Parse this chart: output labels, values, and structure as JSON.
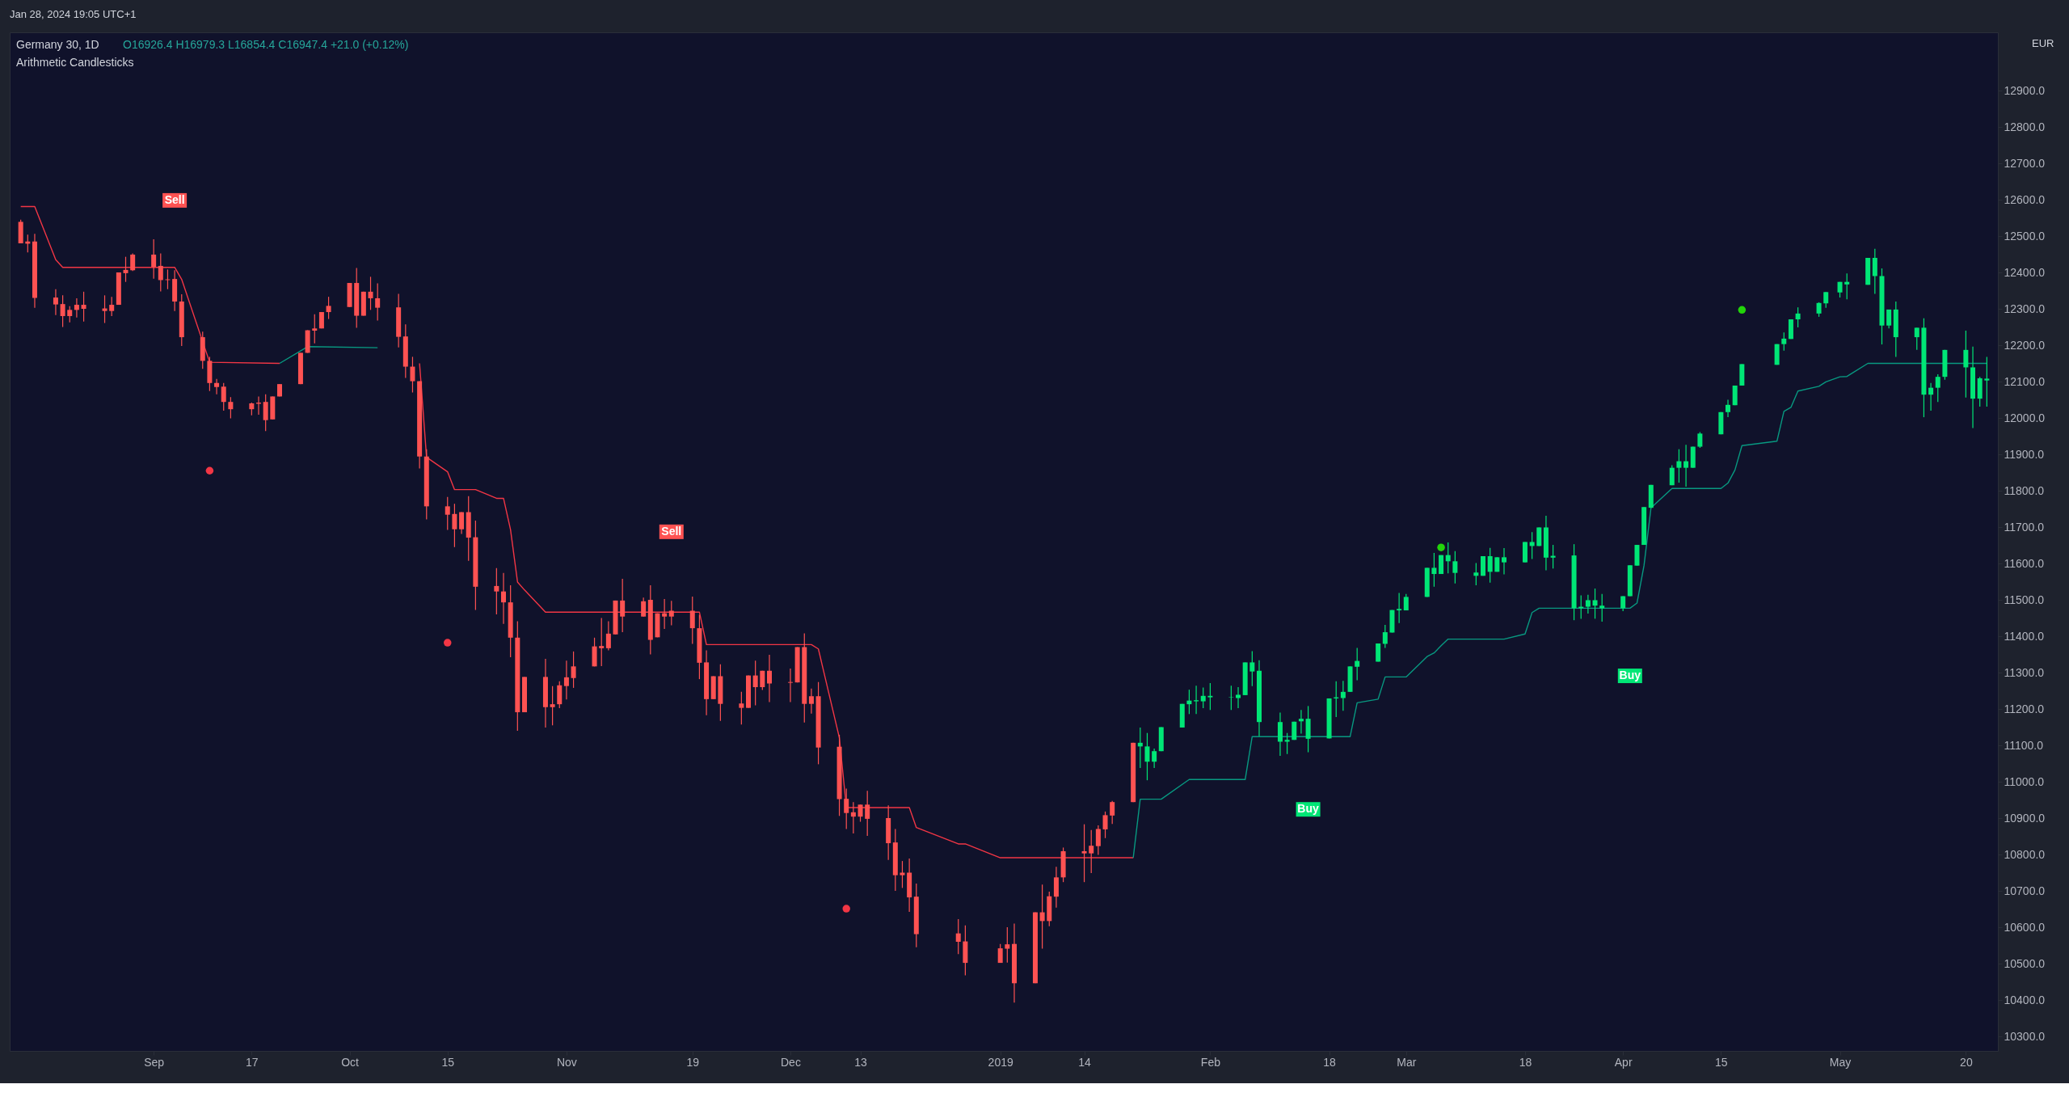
{
  "chart_data": {
    "type": "candlestick",
    "title": "Germany 30, 1D",
    "subtitle": "Arithmetic Candlesticks",
    "annotations": [
      "Jan 28, 2024 19:05 UTC+1",
      "O16926.4 H16979.3 L16854.4 C16947.4 +21.0 (+0.12%)",
      "EUR",
      {
        "text": "Sell",
        "x": "2018-09-06",
        "y": 12598
      },
      {
        "text": "Sell",
        "x": "2018-11-16",
        "y": 11687
      },
      {
        "text": "Buy",
        "x": "2019-02-15",
        "y": 10924
      },
      {
        "text": "Buy",
        "x": "2019-04-02",
        "y": 11291
      }
    ],
    "xlim": [
      "2018-08-14",
      "2019-05-24"
    ],
    "xticks": [
      {
        "value": "2018-09-03",
        "label": "Sep"
      },
      {
        "value": "2018-09-17",
        "label": "17"
      },
      {
        "value": "2018-10-01",
        "label": "Oct"
      },
      {
        "value": "2018-10-15",
        "label": "15"
      },
      {
        "value": "2018-11-01",
        "label": "Nov"
      },
      {
        "value": "2018-11-19",
        "label": "19"
      },
      {
        "value": "2018-12-03",
        "label": "Dec"
      },
      {
        "value": "2018-12-13",
        "label": "13"
      },
      {
        "value": "2019-01-02",
        "label": "2019"
      },
      {
        "value": "2019-01-14",
        "label": "14"
      },
      {
        "value": "2019-02-01",
        "label": "Feb"
      },
      {
        "value": "2019-02-18",
        "label": "18"
      },
      {
        "value": "2019-03-01",
        "label": "Mar"
      },
      {
        "value": "2019-03-18",
        "label": "18"
      },
      {
        "value": "2019-04-01",
        "label": "Apr"
      },
      {
        "value": "2019-04-15",
        "label": "15"
      },
      {
        "value": "2019-05-02",
        "label": "May"
      },
      {
        "value": "2019-05-20",
        "label": "20"
      }
    ],
    "ylim": [
      10260,
      13060
    ],
    "yticks": [
      {
        "value": 10300,
        "label": "10300.0"
      },
      {
        "value": 10400,
        "label": "10400.0"
      },
      {
        "value": 10500,
        "label": "10500.0"
      },
      {
        "value": 10600,
        "label": "10600.0"
      },
      {
        "value": 10700,
        "label": "10700.0"
      },
      {
        "value": 10800,
        "label": "10800.0"
      },
      {
        "value": 10900,
        "label": "10900.0"
      },
      {
        "value": 11000,
        "label": "11000.0"
      },
      {
        "value": 11100,
        "label": "11100.0"
      },
      {
        "value": 11200,
        "label": "11200.0"
      },
      {
        "value": 11300,
        "label": "11300.0"
      },
      {
        "value": 11400,
        "label": "11400.0"
      },
      {
        "value": 11500,
        "label": "11500.0"
      },
      {
        "value": 11600,
        "label": "11600.0"
      },
      {
        "value": 11700,
        "label": "11700.0"
      },
      {
        "value": 11800,
        "label": "11800.0"
      },
      {
        "value": 11900,
        "label": "11900.0"
      },
      {
        "value": 12000,
        "label": "12000.0"
      },
      {
        "value": 12100,
        "label": "12100.0"
      },
      {
        "value": 12200,
        "label": "12200.0"
      },
      {
        "value": 12300,
        "label": "12300.0"
      },
      {
        "value": 12400,
        "label": "12400.0"
      },
      {
        "value": 12500,
        "label": "12500.0"
      },
      {
        "value": 12600,
        "label": "12600.0"
      },
      {
        "value": 12700,
        "label": "12700.0"
      },
      {
        "value": 12800,
        "label": "12800.0"
      },
      {
        "value": 12900,
        "label": "12900.0"
      }
    ],
    "series": [
      {
        "type": "line",
        "color": "#f23645",
        "x": [
          "2018-08-15",
          "2018-08-17",
          "2018-08-20",
          "2018-08-21",
          "2018-09-06",
          "2018-09-07",
          "2018-09-11",
          "2018-09-21"
        ],
        "values": [
          12581,
          12581,
          12435,
          12414,
          12414,
          12381,
          12153,
          12150
        ]
      },
      {
        "type": "line",
        "color": "#089981",
        "x": [
          "2018-09-21",
          "2018-09-25",
          "2018-10-05"
        ],
        "values": [
          12150,
          12196,
          12193
        ]
      },
      {
        "type": "line",
        "color": "#f23645",
        "x": [
          "2018-10-11",
          "2018-10-12",
          "2018-10-15",
          "2018-10-16",
          "2018-10-19",
          "2018-10-22",
          "2018-10-23",
          "2018-10-24",
          "2018-10-25",
          "2018-10-26",
          "2018-10-29",
          "2018-11-20",
          "2018-11-21",
          "2018-12-06",
          "2018-12-07",
          "2018-12-10",
          "2018-12-11",
          "2018-12-20",
          "2018-12-21",
          "2018-12-27",
          "2018-12-28",
          "2019-01-02",
          "2019-01-21"
        ],
        "values": [
          12150,
          11892,
          11852,
          11803,
          11803,
          11779,
          11779,
          11693,
          11549,
          11527,
          11466,
          11466,
          11377,
          11377,
          11365,
          11121,
          10929,
          10929,
          10874,
          10829,
          10829,
          10791,
          10791
        ]
      },
      {
        "type": "line",
        "color": "#089981",
        "x": [
          "2019-01-21",
          "2019-01-22",
          "2019-01-25",
          "2019-01-29",
          "2019-02-06",
          "2019-02-07",
          "2019-02-21",
          "2019-02-22",
          "2019-02-25",
          "2019-02-26",
          "2019-03-01",
          "2019-03-04",
          "2019-03-05",
          "2019-03-06",
          "2019-03-07",
          "2019-03-15",
          "2019-03-18",
          "2019-03-19",
          "2019-03-20",
          "2019-04-02",
          "2019-04-03",
          "2019-04-04",
          "2019-04-05",
          "2019-04-08",
          "2019-04-15",
          "2019-04-16",
          "2019-04-17",
          "2019-04-18",
          "2019-04-23",
          "2019-04-24",
          "2019-04-25",
          "2019-04-26",
          "2019-04-29",
          "2019-04-30",
          "2019-05-02",
          "2019-05-03",
          "2019-05-06",
          "2019-05-23"
        ],
        "values": [
          10791,
          10952,
          10952,
          11006,
          11006,
          11124,
          11124,
          11217,
          11227,
          11288,
          11288,
          11344,
          11354,
          11374,
          11392,
          11392,
          11406,
          11465,
          11477,
          11477,
          11491,
          11594,
          11753,
          11806,
          11806,
          11821,
          11857,
          11924,
          11936,
          12018,
          12029,
          12074,
          12087,
          12099,
          12113,
          12114,
          12150,
          12150
        ]
      },
      {
        "type": "scatter",
        "marker": "circle",
        "color": "#f23645",
        "x": [
          "2018-09-11",
          "2018-10-15",
          "2018-12-11"
        ],
        "values": [
          11855,
          11382,
          10651
        ]
      },
      {
        "type": "scatter",
        "marker": "circle",
        "color": "#22d40a",
        "x": [
          "2019-03-06",
          "2019-04-18"
        ],
        "values": [
          11644,
          12297
        ]
      },
      {
        "type": "candlestick",
        "color": "#ff5252",
        "x": [
          "2018-08-15",
          "2018-08-16",
          "2018-08-17",
          "2018-08-20",
          "2018-08-21",
          "2018-08-22",
          "2018-08-23",
          "2018-08-24",
          "2018-08-27",
          "2018-08-28",
          "2018-08-29",
          "2018-08-30",
          "2018-08-31",
          "2018-09-03",
          "2018-09-04",
          "2018-09-05",
          "2018-09-06",
          "2018-09-07",
          "2018-09-10",
          "2018-09-11",
          "2018-09-12",
          "2018-09-13",
          "2018-09-14",
          "2018-09-17",
          "2018-09-18",
          "2018-09-19",
          "2018-09-20",
          "2018-09-21",
          "2018-09-24",
          "2018-09-25",
          "2018-09-26",
          "2018-09-27",
          "2018-09-28",
          "2018-10-01",
          "2018-10-02",
          "2018-10-03",
          "2018-10-04",
          "2018-10-05",
          "2018-10-08",
          "2018-10-09",
          "2018-10-10",
          "2018-10-11",
          "2018-10-12",
          "2018-10-15",
          "2018-10-16",
          "2018-10-17",
          "2018-10-18",
          "2018-10-19",
          "2018-10-22",
          "2018-10-23",
          "2018-10-24",
          "2018-10-25",
          "2018-10-26",
          "2018-10-29",
          "2018-10-30",
          "2018-10-31",
          "2018-11-01",
          "2018-11-02",
          "2018-11-05",
          "2018-11-06",
          "2018-11-07",
          "2018-11-08",
          "2018-11-09",
          "2018-11-12",
          "2018-11-13",
          "2018-11-14",
          "2018-11-15",
          "2018-11-16",
          "2018-11-19",
          "2018-11-20",
          "2018-11-21",
          "2018-11-22",
          "2018-11-23",
          "2018-11-26",
          "2018-11-27",
          "2018-11-28",
          "2018-11-29",
          "2018-11-30",
          "2018-12-03",
          "2018-12-04",
          "2018-12-05",
          "2018-12-06",
          "2018-12-07",
          "2018-12-10",
          "2018-12-11",
          "2018-12-12",
          "2018-12-13",
          "2018-12-14",
          "2018-12-17",
          "2018-12-18",
          "2018-12-19",
          "2018-12-20",
          "2018-12-21",
          "2018-12-27",
          "2018-12-28",
          "2019-01-02",
          "2019-01-03",
          "2019-01-04",
          "2019-01-07",
          "2019-01-08",
          "2019-01-09",
          "2019-01-10",
          "2019-01-11",
          "2019-01-14",
          "2019-01-15",
          "2019-01-16",
          "2019-01-17",
          "2019-01-18",
          "2019-01-21"
        ],
        "ohlc": [
          [
            12539,
            12545,
            12480,
            12480
          ],
          [
            12485,
            12504,
            12455,
            12479
          ],
          [
            12485,
            12506,
            12303,
            12330
          ],
          [
            12331,
            12354,
            12283,
            12312
          ],
          [
            12313,
            12337,
            12250,
            12280
          ],
          [
            12297,
            12307,
            12263,
            12280
          ],
          [
            12311,
            12329,
            12276,
            12297
          ],
          [
            12311,
            12347,
            12265,
            12300
          ],
          [
            12301,
            12337,
            12261,
            12294
          ],
          [
            12311,
            12333,
            12280,
            12294
          ],
          [
            12400,
            12400,
            12311,
            12311
          ],
          [
            12407,
            12443,
            12374,
            12398
          ],
          [
            12449,
            12452,
            12404,
            12406
          ],
          [
            12449,
            12491,
            12383,
            12415
          ],
          [
            12418,
            12452,
            12348,
            12379
          ],
          [
            12381,
            12408,
            12354,
            12379
          ],
          [
            12382,
            12406,
            12294,
            12320
          ],
          [
            12320,
            12340,
            12198,
            12222
          ],
          [
            12222,
            12237,
            12135,
            12157
          ],
          [
            12157,
            12168,
            12074,
            12096
          ],
          [
            12096,
            12107,
            12065,
            12085
          ],
          [
            12086,
            12096,
            12020,
            12044
          ],
          [
            12044,
            12057,
            11999,
            12024
          ],
          [
            12040,
            12042,
            12007,
            12024
          ],
          [
            12042,
            12059,
            12009,
            12039
          ],
          [
            12044,
            12065,
            11964,
            11994
          ],
          [
            12059,
            12059,
            11996,
            11996
          ],
          [
            12093,
            12093,
            12059,
            12059
          ],
          [
            12179,
            12179,
            12093,
            12093
          ],
          [
            12241,
            12241,
            12179,
            12179
          ],
          [
            12246,
            12285,
            12205,
            12240
          ],
          [
            12291,
            12291,
            12246,
            12246
          ],
          [
            12308,
            12333,
            12272,
            12291
          ],
          [
            12371,
            12371,
            12305,
            12305
          ],
          [
            12371,
            12412,
            12248,
            12281
          ],
          [
            12347,
            12347,
            12281,
            12281
          ],
          [
            12347,
            12388,
            12297,
            12329
          ],
          [
            12329,
            12370,
            12268,
            12303
          ],
          [
            12304,
            12341,
            12194,
            12223
          ],
          [
            12224,
            12257,
            12110,
            12141
          ],
          [
            12141,
            12168,
            12070,
            12101
          ],
          [
            12101,
            12101,
            11861,
            11894
          ],
          [
            11894,
            11914,
            11721,
            11757
          ],
          [
            11757,
            11783,
            11692,
            11734
          ],
          [
            11736,
            11764,
            11645,
            11694
          ],
          [
            11741,
            11741,
            11681,
            11694
          ],
          [
            11741,
            11785,
            11607,
            11671
          ],
          [
            11672,
            11718,
            11472,
            11536
          ],
          [
            11538,
            11587,
            11460,
            11523
          ],
          [
            11523,
            11574,
            11434,
            11493
          ],
          [
            11493,
            11540,
            11342,
            11396
          ],
          [
            11396,
            11441,
            11140,
            11191
          ],
          [
            11288,
            11288,
            11191,
            11191
          ],
          [
            11288,
            11338,
            11149,
            11205
          ],
          [
            11213,
            11263,
            11155,
            11205
          ],
          [
            11265,
            11276,
            11202,
            11213
          ],
          [
            11287,
            11333,
            11226,
            11263
          ],
          [
            11317,
            11358,
            11258,
            11285
          ],
          [
            11372,
            11396,
            11317,
            11317
          ],
          [
            11373,
            11450,
            11318,
            11367
          ],
          [
            11407,
            11441,
            11361,
            11367
          ],
          [
            11498,
            11498,
            11405,
            11405
          ],
          [
            11498,
            11558,
            11411,
            11454
          ],
          [
            11496,
            11506,
            11454,
            11454
          ],
          [
            11500,
            11540,
            11350,
            11390
          ],
          [
            11463,
            11463,
            11397,
            11397
          ],
          [
            11463,
            11502,
            11420,
            11454
          ],
          [
            11470,
            11497,
            11430,
            11454
          ],
          [
            11470,
            11509,
            11379,
            11422
          ],
          [
            11422,
            11459,
            11282,
            11327
          ],
          [
            11328,
            11361,
            11183,
            11227
          ],
          [
            11290,
            11290,
            11227,
            11227
          ],
          [
            11290,
            11323,
            11167,
            11214
          ],
          [
            11215,
            11247,
            11157,
            11203
          ],
          [
            11292,
            11292,
            11203,
            11203
          ],
          [
            11292,
            11333,
            11210,
            11260
          ],
          [
            11305,
            11305,
            11252,
            11260
          ],
          [
            11305,
            11349,
            11219,
            11270
          ],
          [
            11274,
            11311,
            11219,
            11272
          ],
          [
            11370,
            11370,
            11273,
            11273
          ],
          [
            11370,
            11408,
            11163,
            11214
          ],
          [
            11235,
            11256,
            11187,
            11214
          ],
          [
            11235,
            11274,
            11048,
            11094
          ],
          [
            11096,
            11129,
            10906,
            10952
          ],
          [
            10953,
            10981,
            10870,
            10914
          ],
          [
            10916,
            10944,
            10858,
            10904
          ],
          [
            10937,
            10937,
            10890,
            10904
          ],
          [
            10937,
            10975,
            10851,
            10898
          ],
          [
            10900,
            10935,
            10785,
            10831
          ],
          [
            10833,
            10870,
            10700,
            10743
          ],
          [
            10750,
            10782,
            10708,
            10743
          ],
          [
            10750,
            10789,
            10642,
            10682
          ],
          [
            10684,
            10720,
            10545,
            10581
          ],
          [
            10583,
            10622,
            10526,
            10560
          ],
          [
            10561,
            10605,
            10468,
            10502
          ],
          [
            10542,
            10554,
            10502,
            10502
          ],
          [
            10553,
            10600,
            10503,
            10541
          ],
          [
            10554,
            10610,
            10393,
            10446
          ],
          [
            10641,
            10641,
            10446,
            10446
          ],
          [
            10641,
            10717,
            10541,
            10617
          ],
          [
            10685,
            10698,
            10603,
            10617
          ],
          [
            10737,
            10766,
            10654,
            10684
          ],
          [
            10809,
            10819,
            10724,
            10737
          ],
          [
            10809,
            10883,
            10724,
            10803
          ],
          [
            10824,
            10867,
            10749,
            10803
          ],
          [
            10870,
            10880,
            10799,
            10823
          ],
          [
            10908,
            10918,
            10845,
            10869
          ],
          [
            10944,
            10947,
            10884,
            10907
          ],
          [
            11107,
            11107,
            10944,
            10944
          ]
        ]
      },
      {
        "type": "candlestick",
        "color": "#00e676",
        "x": [
          "2019-01-22",
          "2019-01-23",
          "2019-01-24",
          "2019-01-25",
          "2019-01-28",
          "2019-01-29",
          "2019-01-30",
          "2019-01-31",
          "2019-02-01",
          "2019-02-04",
          "2019-02-05",
          "2019-02-06",
          "2019-02-07",
          "2019-02-08",
          "2019-02-11",
          "2019-02-12",
          "2019-02-13",
          "2019-02-14",
          "2019-02-15",
          "2019-02-18",
          "2019-02-19",
          "2019-02-20",
          "2019-02-21",
          "2019-02-22",
          "2019-02-25",
          "2019-02-26",
          "2019-02-27",
          "2019-02-28",
          "2019-03-01",
          "2019-03-04",
          "2019-03-05",
          "2019-03-06",
          "2019-03-07",
          "2019-03-08",
          "2019-03-11",
          "2019-03-12",
          "2019-03-13",
          "2019-03-14",
          "2019-03-15",
          "2019-03-18",
          "2019-03-19",
          "2019-03-20",
          "2019-03-21",
          "2019-03-22",
          "2019-03-25",
          "2019-03-26",
          "2019-03-27",
          "2019-03-28",
          "2019-03-29",
          "2019-04-01",
          "2019-04-02",
          "2019-04-03",
          "2019-04-04",
          "2019-04-05",
          "2019-04-08",
          "2019-04-09",
          "2019-04-10",
          "2019-04-11",
          "2019-04-12",
          "2019-04-15",
          "2019-04-16",
          "2019-04-17",
          "2019-04-18",
          "2019-04-23",
          "2019-04-24",
          "2019-04-25",
          "2019-04-26",
          "2019-04-29",
          "2019-04-30",
          "2019-05-02",
          "2019-05-03",
          "2019-05-06",
          "2019-05-07",
          "2019-05-08",
          "2019-05-09",
          "2019-05-10",
          "2019-05-13",
          "2019-05-14",
          "2019-05-15",
          "2019-05-16",
          "2019-05-17",
          "2019-05-20",
          "2019-05-21",
          "2019-05-22",
          "2019-05-23"
        ],
        "ohlc": [
          [
            11097,
            11149,
            11038,
            11107
          ],
          [
            11055,
            11134,
            11004,
            11097
          ],
          [
            11055,
            11091,
            11038,
            11084
          ],
          [
            11084,
            11150,
            11084,
            11150
          ],
          [
            11149,
            11214,
            11149,
            11214
          ],
          [
            11213,
            11253,
            11186,
            11223
          ],
          [
            11221,
            11264,
            11186,
            11224
          ],
          [
            11221,
            11259,
            11202,
            11236
          ],
          [
            11232,
            11271,
            11197,
            11236
          ],
          [
            11232,
            11264,
            11197,
            11233
          ],
          [
            11230,
            11260,
            11202,
            11239
          ],
          [
            11238,
            11328,
            11238,
            11328
          ],
          [
            11303,
            11359,
            11263,
            11328
          ],
          [
            11164,
            11334,
            11125,
            11305
          ],
          [
            11110,
            11190,
            11071,
            11164
          ],
          [
            11110,
            11134,
            11076,
            11115
          ],
          [
            11115,
            11165,
            11115,
            11165
          ],
          [
            11166,
            11197,
            11132,
            11173
          ],
          [
            11118,
            11208,
            11081,
            11173
          ],
          [
            11119,
            11229,
            11119,
            11229
          ],
          [
            11229,
            11276,
            11178,
            11232
          ],
          [
            11230,
            11277,
            11195,
            11247
          ],
          [
            11247,
            11317,
            11247,
            11317
          ],
          [
            11316,
            11368,
            11279,
            11332
          ],
          [
            11330,
            11380,
            11330,
            11380
          ],
          [
            11379,
            11431,
            11368,
            11411
          ],
          [
            11410,
            11472,
            11410,
            11472
          ],
          [
            11471,
            11519,
            11436,
            11475
          ],
          [
            11471,
            11516,
            11471,
            11508
          ],
          [
            11508,
            11588,
            11508,
            11588
          ],
          [
            11571,
            11629,
            11536,
            11588
          ],
          [
            11571,
            11623,
            11571,
            11623
          ],
          [
            11606,
            11658,
            11573,
            11623
          ],
          [
            11574,
            11634,
            11545,
            11606
          ],
          [
            11566,
            11601,
            11540,
            11575
          ],
          [
            11566,
            11620,
            11566,
            11620
          ],
          [
            11577,
            11643,
            11547,
            11620
          ],
          [
            11577,
            11617,
            11577,
            11617
          ],
          [
            11603,
            11642,
            11570,
            11617
          ],
          [
            11603,
            11659,
            11603,
            11659
          ],
          [
            11648,
            11686,
            11612,
            11659
          ],
          [
            11648,
            11699,
            11648,
            11699
          ],
          [
            11616,
            11731,
            11581,
            11699
          ],
          [
            11616,
            11651,
            11586,
            11621
          ],
          [
            11477,
            11653,
            11444,
            11622
          ],
          [
            11477,
            11512,
            11448,
            11481
          ],
          [
            11481,
            11514,
            11462,
            11499
          ],
          [
            11484,
            11531,
            11448,
            11499
          ],
          [
            11477,
            11516,
            11440,
            11484
          ],
          [
            11477,
            11510,
            11469,
            11510
          ],
          [
            11510,
            11595,
            11510,
            11595
          ],
          [
            11594,
            11651,
            11594,
            11651
          ],
          [
            11651,
            11755,
            11651,
            11755
          ],
          [
            11753,
            11816,
            11753,
            11816
          ],
          [
            11815,
            11870,
            11815,
            11863
          ],
          [
            11863,
            11914,
            11822,
            11881
          ],
          [
            11863,
            11926,
            11811,
            11881
          ],
          [
            11863,
            11921,
            11863,
            11921
          ],
          [
            11921,
            11961,
            11918,
            11957
          ],
          [
            11955,
            12016,
            11955,
            12016
          ],
          [
            12016,
            12050,
            12002,
            12036
          ],
          [
            12035,
            12089,
            12035,
            12089
          ],
          [
            12089,
            12148,
            12089,
            12148
          ],
          [
            12146,
            12203,
            12146,
            12203
          ],
          [
            12203,
            12235,
            12185,
            12218
          ],
          [
            12217,
            12271,
            12217,
            12271
          ],
          [
            12271,
            12304,
            12249,
            12287
          ],
          [
            12287,
            12318,
            12278,
            12316
          ],
          [
            12315,
            12346,
            12303,
            12346
          ],
          [
            12345,
            12374,
            12331,
            12374
          ],
          [
            12367,
            12397,
            12326,
            12374
          ],
          [
            12366,
            12440,
            12366,
            12440
          ],
          [
            12390,
            12465,
            12341,
            12440
          ],
          [
            12254,
            12411,
            12202,
            12390
          ],
          [
            12254,
            12298,
            12246,
            12298
          ],
          [
            12222,
            12320,
            12168,
            12298
          ],
          [
            12222,
            12248,
            12187,
            12248
          ],
          [
            12064,
            12274,
            12002,
            12248
          ],
          [
            12064,
            12096,
            12020,
            12083
          ],
          [
            12083,
            12120,
            12044,
            12113
          ],
          [
            12113,
            12187,
            12105,
            12187
          ],
          [
            12139,
            12240,
            12056,
            12187
          ],
          [
            12053,
            12196,
            11972,
            12139
          ],
          [
            12053,
            12113,
            12031,
            12109
          ],
          [
            12103,
            12168,
            12031,
            12108
          ]
        ]
      }
    ]
  }
}
